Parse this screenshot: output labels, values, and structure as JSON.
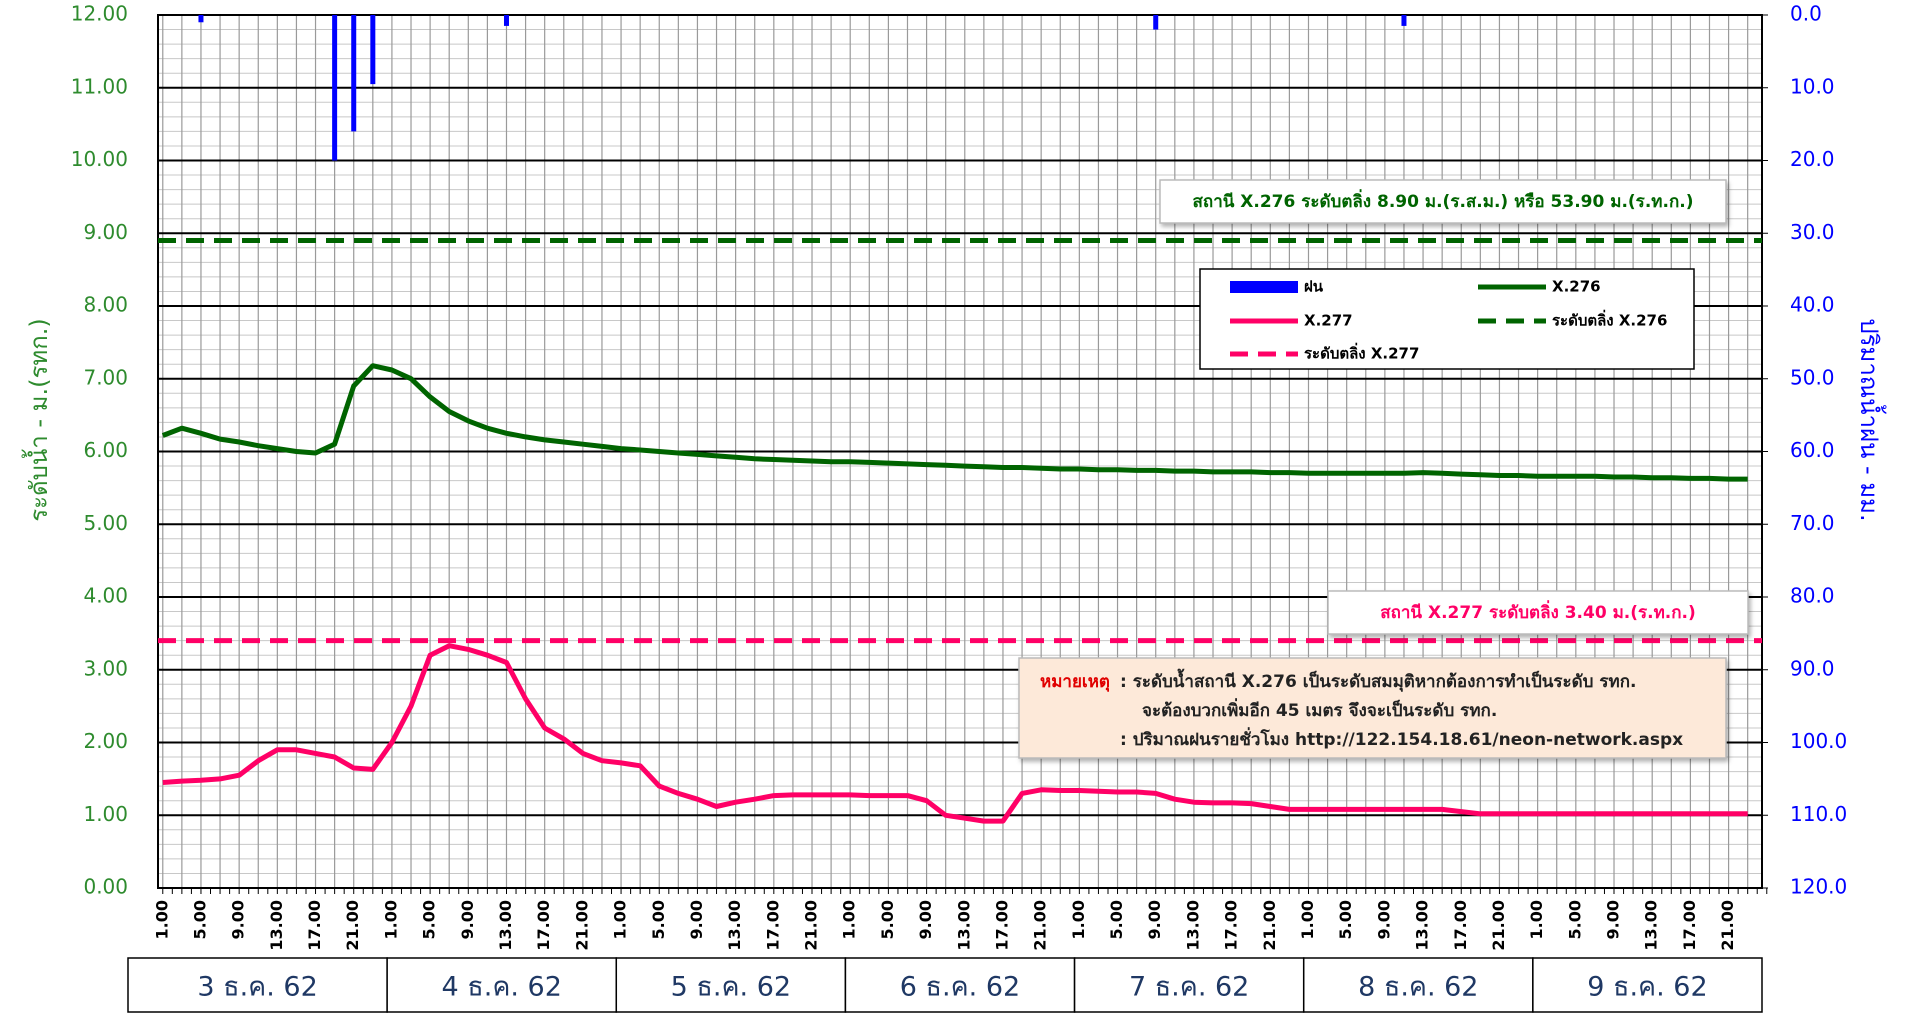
{
  "chart_data": {
    "type": "line",
    "y_label": "ระดับน้ำ  -  ม.(รทก.)",
    "y2_label": "ปริมาณน้ำฝน - มม.",
    "categories": [
      "1.00",
      null,
      "5.00",
      null,
      "9.00",
      null,
      "13.00",
      null,
      "17.00",
      null,
      "21.00",
      null,
      "1.00",
      null,
      "5.00",
      null,
      "9.00",
      null,
      "13.00",
      null,
      "17.00",
      null,
      "21.00",
      null,
      "1.00",
      null,
      "5.00",
      null,
      "9.00",
      null,
      "13.00",
      null,
      "17.00",
      null,
      "21.00",
      null,
      "1.00",
      null,
      "5.00",
      null,
      "9.00",
      null,
      "13.00",
      null,
      "17.00",
      null,
      "21.00",
      null,
      "1.00",
      null,
      "5.00",
      null,
      "9.00",
      null,
      "13.00",
      null,
      "17.00",
      null,
      "21.00",
      null,
      "1.00",
      null,
      "5.00",
      null,
      "9.00",
      null,
      "13.00",
      null,
      "17.00",
      null,
      "21.00",
      null,
      "1.00",
      null,
      "5.00",
      null,
      "9.00",
      null,
      "13.00",
      null,
      "17.00",
      null,
      "21.00",
      null
    ],
    "days": [
      "3 ธ.ค. 62",
      "4 ธ.ค. 62",
      "5 ธ.ค. 62",
      "6 ธ.ค. 62",
      "7 ธ.ค. 62",
      "8 ธ.ค. 62",
      "9 ธ.ค. 62"
    ],
    "series": [
      {
        "name": "ฝน",
        "type": "bar",
        "axis": "y2",
        "color": "#0000ff",
        "values": [
          0,
          0,
          1,
          0,
          0,
          0,
          0,
          0,
          0,
          20,
          16,
          9.5,
          0,
          0,
          0,
          0,
          0,
          0,
          1.5,
          0,
          0,
          0,
          0,
          0,
          0,
          0,
          0,
          0,
          0,
          0,
          0,
          0,
          0,
          0,
          0,
          0,
          0,
          0,
          0,
          0,
          0,
          0,
          0,
          0,
          0,
          0,
          0,
          0,
          0,
          0,
          0,
          0,
          2,
          0,
          0,
          0,
          0,
          0,
          0,
          0,
          0,
          0,
          0,
          0,
          0,
          1.5,
          0,
          0,
          0,
          0,
          0,
          0,
          0,
          0,
          0,
          0,
          0,
          0,
          0,
          0,
          0,
          0,
          0,
          0
        ]
      },
      {
        "name": "X.276",
        "type": "line",
        "color": "#006400",
        "values": [
          6.22,
          6.32,
          6.25,
          6.17,
          6.13,
          6.08,
          6.04,
          6.0,
          5.98,
          6.1,
          6.9,
          7.18,
          7.12,
          7.0,
          6.75,
          6.55,
          6.42,
          6.32,
          6.25,
          6.2,
          6.16,
          6.13,
          6.1,
          6.07,
          6.04,
          6.02,
          6.0,
          5.98,
          5.96,
          5.94,
          5.92,
          5.9,
          5.89,
          5.88,
          5.87,
          5.86,
          5.86,
          5.85,
          5.84,
          5.83,
          5.82,
          5.81,
          5.8,
          5.79,
          5.78,
          5.78,
          5.77,
          5.76,
          5.76,
          5.75,
          5.75,
          5.74,
          5.74,
          5.73,
          5.73,
          5.72,
          5.72,
          5.72,
          5.71,
          5.71,
          5.7,
          5.7,
          5.7,
          5.7,
          5.7,
          5.7,
          5.71,
          5.7,
          5.69,
          5.68,
          5.67,
          5.67,
          5.66,
          5.66,
          5.66,
          5.66,
          5.65,
          5.65,
          5.64,
          5.64,
          5.63,
          5.63,
          5.62,
          5.62
        ]
      },
      {
        "name": "X.277",
        "type": "line",
        "color": "#ff0066",
        "values": [
          1.45,
          1.47,
          1.48,
          1.5,
          1.55,
          1.75,
          1.9,
          1.9,
          1.85,
          1.8,
          1.65,
          1.63,
          2.0,
          2.5,
          3.2,
          3.33,
          3.28,
          3.2,
          3.1,
          2.6,
          2.2,
          2.05,
          1.85,
          1.75,
          1.72,
          1.68,
          1.4,
          1.3,
          1.22,
          1.12,
          1.18,
          1.22,
          1.27,
          1.28,
          1.28,
          1.28,
          1.28,
          1.27,
          1.27,
          1.27,
          1.2,
          1.0,
          0.96,
          0.92,
          0.92,
          1.3,
          1.35,
          1.34,
          1.34,
          1.33,
          1.32,
          1.32,
          1.3,
          1.22,
          1.18,
          1.17,
          1.17,
          1.16,
          1.12,
          1.08,
          1.08,
          1.08,
          1.08,
          1.08,
          1.08,
          1.08,
          1.08,
          1.08,
          1.05,
          1.02,
          1.02,
          1.02,
          1.02,
          1.02,
          1.02,
          1.02,
          1.02,
          1.02,
          1.02,
          1.02,
          1.02,
          1.02,
          1.02,
          1.02
        ]
      }
    ],
    "reference_lines": [
      {
        "name": "ระดับตลิ่ง X.276",
        "value": 8.9,
        "color": "#006400"
      },
      {
        "name": "ระดับตลิ่ง X.277",
        "value": 3.4,
        "color": "#ff0066"
      }
    ],
    "annotations": [
      "สถานี X.276  ระดับตลิ่ง 8.90 ม.(ร.ส.ม.) หรือ  53.90 ม.(ร.ท.ก.)",
      "สถานี X.277 ระดับตลิ่ง 3.40 ม.(ร.ท.ก.)"
    ],
    "note": {
      "label": "หมายเหตุ",
      "lines": [
        ":  ระดับน้ำสถานี X.276 เป็นระดับสมมุติหากต้องการทำเป็นระดับ รทก.",
        "จะต้องบวกเพิ่มอีก 45 เมตร  จึงจะเป็นระดับ รทก.",
        ":  ปริมาณฝนรายชั่วโมง http://122.154.18.61/neon-network.aspx"
      ]
    },
    "ylim": [
      0,
      12
    ],
    "yticks": [
      {
        "value": 0,
        "label": "0.00"
      },
      {
        "value": 1,
        "label": "1.00"
      },
      {
        "value": 2,
        "label": "2.00"
      },
      {
        "value": 3,
        "label": "3.00"
      },
      {
        "value": 4,
        "label": "4.00"
      },
      {
        "value": 5,
        "label": "5.00"
      },
      {
        "value": 6,
        "label": "6.00"
      },
      {
        "value": 7,
        "label": "7.00"
      },
      {
        "value": 8,
        "label": "8.00"
      },
      {
        "value": 9,
        "label": "9.00"
      },
      {
        "value": 10,
        "label": "10.00"
      },
      {
        "value": 11,
        "label": "11.00"
      },
      {
        "value": 12,
        "label": "12.00"
      }
    ],
    "y2lim": [
      0,
      120
    ],
    "y2_inverted": true,
    "y2ticks": [
      {
        "value": 0,
        "label": "0.0"
      },
      {
        "value": 10,
        "label": "10.0"
      },
      {
        "value": 20,
        "label": "20.0"
      },
      {
        "value": 30,
        "label": "30.0"
      },
      {
        "value": 40,
        "label": "40.0"
      },
      {
        "value": 50,
        "label": "50.0"
      },
      {
        "value": 60,
        "label": "60.0"
      },
      {
        "value": 70,
        "label": "70.0"
      },
      {
        "value": 80,
        "label": "80.0"
      },
      {
        "value": 90,
        "label": "90.0"
      },
      {
        "value": 100,
        "label": "100.0"
      },
      {
        "value": 110,
        "label": "110.0"
      },
      {
        "value": 120,
        "label": "120.0"
      }
    ],
    "grid": true
  }
}
